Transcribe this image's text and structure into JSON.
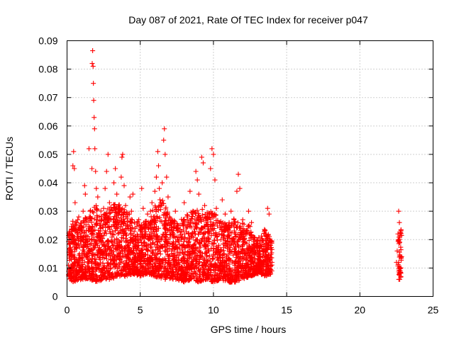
{
  "chart_data": {
    "type": "scatter",
    "title": "Day 087 of 2021, Rate Of TEC Index for receiver p047",
    "xlabel": "GPS time / hours",
    "ylabel": "ROTI / TECUs",
    "xlim": [
      0,
      25
    ],
    "ylim": [
      0,
      0.09
    ],
    "x_ticks": [
      0,
      5,
      10,
      15,
      20,
      25
    ],
    "x_tick_labels": [
      "0",
      "5",
      "10",
      "15",
      "20",
      "25"
    ],
    "y_ticks": [
      0,
      0.01,
      0.02,
      0.03,
      0.04,
      0.05,
      0.06,
      0.07,
      0.08,
      0.09
    ],
    "y_tick_labels": [
      "0",
      "0.01",
      "0.02",
      "0.03",
      "0.04",
      "0.05",
      "0.06",
      "0.07",
      "0.08",
      "0.09"
    ],
    "grid": true,
    "marker": "+",
    "marker_color": "#ff0000",
    "series": [
      {
        "points": [
          [
            0.1,
            0.011
          ],
          [
            0.15,
            0.016
          ],
          [
            0.2,
            0.022
          ],
          [
            0.25,
            0.009
          ],
          [
            0.3,
            0.013
          ],
          [
            0.35,
            0.019
          ],
          [
            0.4,
            0.046
          ],
          [
            0.45,
            0.051
          ],
          [
            0.5,
            0.045
          ],
          [
            0.55,
            0.033
          ],
          [
            0.6,
            0.026
          ],
          [
            0.65,
            0.018
          ],
          [
            0.7,
            0.012
          ],
          [
            0.75,
            0.021
          ],
          [
            0.8,
            0.028
          ],
          [
            0.85,
            0.015
          ],
          [
            0.9,
            0.009
          ],
          [
            1.0,
            0.024
          ],
          [
            1.1,
            0.03
          ],
          [
            1.2,
            0.039
          ],
          [
            1.25,
            0.036
          ],
          [
            1.3,
            0.019
          ],
          [
            1.4,
            0.014
          ],
          [
            1.5,
            0.052
          ],
          [
            1.6,
            0.028
          ],
          [
            1.7,
            0.045
          ],
          [
            1.72,
            0.082
          ],
          [
            1.75,
            0.0865
          ],
          [
            1.78,
            0.081
          ],
          [
            1.8,
            0.075
          ],
          [
            1.82,
            0.069
          ],
          [
            1.85,
            0.063
          ],
          [
            1.88,
            0.059
          ],
          [
            1.9,
            0.052
          ],
          [
            1.95,
            0.044
          ],
          [
            2.0,
            0.038
          ],
          [
            2.1,
            0.035
          ],
          [
            2.2,
            0.028
          ],
          [
            2.3,
            0.021
          ],
          [
            2.4,
            0.016
          ],
          [
            2.5,
            0.031
          ],
          [
            2.6,
            0.038
          ],
          [
            2.7,
            0.044
          ],
          [
            2.8,
            0.05
          ],
          [
            2.9,
            0.033
          ],
          [
            3.0,
            0.027
          ],
          [
            3.1,
            0.022
          ],
          [
            3.2,
            0.04
          ],
          [
            3.3,
            0.045
          ],
          [
            3.4,
            0.036
          ],
          [
            3.5,
            0.029
          ],
          [
            3.6,
            0.019
          ],
          [
            3.7,
            0.042
          ],
          [
            3.75,
            0.049
          ],
          [
            3.8,
            0.05
          ],
          [
            3.9,
            0.039
          ],
          [
            4.0,
            0.032
          ],
          [
            4.1,
            0.024
          ],
          [
            4.2,
            0.018
          ],
          [
            4.3,
            0.035
          ],
          [
            4.4,
            0.03
          ],
          [
            4.5,
            0.036
          ],
          [
            4.6,
            0.026
          ],
          [
            4.7,
            0.02
          ],
          [
            4.8,
            0.015
          ],
          [
            4.9,
            0.027
          ],
          [
            5.0,
            0.023
          ],
          [
            5.1,
            0.038
          ],
          [
            5.2,
            0.031
          ],
          [
            5.3,
            0.022
          ],
          [
            5.4,
            0.018
          ],
          [
            5.5,
            0.029
          ],
          [
            5.6,
            0.025
          ],
          [
            5.7,
            0.03
          ],
          [
            5.8,
            0.033
          ],
          [
            5.9,
            0.028
          ],
          [
            6.0,
            0.037
          ],
          [
            6.1,
            0.042
          ],
          [
            6.2,
            0.051
          ],
          [
            6.25,
            0.046
          ],
          [
            6.3,
            0.038
          ],
          [
            6.4,
            0.033
          ],
          [
            6.5,
            0.04
          ],
          [
            6.6,
            0.055
          ],
          [
            6.65,
            0.059
          ],
          [
            6.7,
            0.05
          ],
          [
            6.8,
            0.042
          ],
          [
            6.9,
            0.035
          ],
          [
            7.0,
            0.028
          ],
          [
            7.2,
            0.022
          ],
          [
            7.4,
            0.03
          ],
          [
            7.6,
            0.025
          ],
          [
            7.8,
            0.02
          ],
          [
            8.0,
            0.033
          ],
          [
            8.2,
            0.028
          ],
          [
            8.4,
            0.037
          ],
          [
            8.6,
            0.03
          ],
          [
            8.8,
            0.044
          ],
          [
            8.9,
            0.041
          ],
          [
            9.0,
            0.036
          ],
          [
            9.2,
            0.049
          ],
          [
            9.3,
            0.047
          ],
          [
            9.4,
            0.032
          ],
          [
            9.6,
            0.027
          ],
          [
            9.8,
            0.045
          ],
          [
            9.9,
            0.052
          ],
          [
            10.0,
            0.05
          ],
          [
            10.1,
            0.041
          ],
          [
            10.2,
            0.031
          ],
          [
            10.4,
            0.026
          ],
          [
            10.6,
            0.034
          ],
          [
            10.8,
            0.029
          ],
          [
            11.0,
            0.024
          ],
          [
            11.2,
            0.03
          ],
          [
            11.4,
            0.027
          ],
          [
            11.6,
            0.037
          ],
          [
            11.7,
            0.043
          ],
          [
            11.8,
            0.038
          ],
          [
            12.0,
            0.027
          ],
          [
            12.2,
            0.022
          ],
          [
            12.4,
            0.03
          ],
          [
            12.6,
            0.026
          ],
          [
            12.8,
            0.02
          ],
          [
            13.0,
            0.017
          ],
          [
            13.2,
            0.015
          ],
          [
            13.4,
            0.012
          ],
          [
            13.6,
            0.022
          ],
          [
            13.7,
            0.031
          ],
          [
            13.8,
            0.029
          ],
          [
            13.9,
            0.018
          ],
          [
            14.0,
            0.012
          ],
          [
            22.5,
            0.012
          ],
          [
            22.55,
            0.016
          ],
          [
            22.6,
            0.022
          ],
          [
            22.65,
            0.03
          ],
          [
            22.7,
            0.026
          ],
          [
            22.72,
            0.019
          ],
          [
            22.75,
            0.009
          ],
          [
            22.8,
            0.007
          ],
          [
            22.85,
            0.014
          ]
        ],
        "dense_band": [
          [
            0.1,
            0.006,
            0.025
          ],
          [
            0.5,
            0.005,
            0.028
          ],
          [
            1.0,
            0.006,
            0.026
          ],
          [
            1.5,
            0.006,
            0.03
          ],
          [
            2.0,
            0.005,
            0.032
          ],
          [
            2.5,
            0.006,
            0.03
          ],
          [
            3.0,
            0.006,
            0.032
          ],
          [
            3.5,
            0.007,
            0.033
          ],
          [
            4.0,
            0.007,
            0.03
          ],
          [
            4.5,
            0.008,
            0.028
          ],
          [
            5.0,
            0.007,
            0.026
          ],
          [
            5.5,
            0.008,
            0.027
          ],
          [
            6.0,
            0.007,
            0.032
          ],
          [
            6.5,
            0.006,
            0.035
          ],
          [
            7.0,
            0.006,
            0.028
          ],
          [
            7.5,
            0.006,
            0.026
          ],
          [
            8.0,
            0.005,
            0.028
          ],
          [
            8.5,
            0.006,
            0.03
          ],
          [
            9.0,
            0.005,
            0.032
          ],
          [
            9.5,
            0.006,
            0.03
          ],
          [
            10.0,
            0.005,
            0.03
          ],
          [
            10.5,
            0.006,
            0.027
          ],
          [
            11.0,
            0.005,
            0.026
          ],
          [
            11.5,
            0.005,
            0.028
          ],
          [
            12.0,
            0.006,
            0.026
          ],
          [
            12.5,
            0.007,
            0.025
          ],
          [
            13.0,
            0.008,
            0.02
          ],
          [
            13.5,
            0.007,
            0.024
          ],
          [
            14.0,
            0.008,
            0.02
          ]
        ]
      }
    ]
  }
}
